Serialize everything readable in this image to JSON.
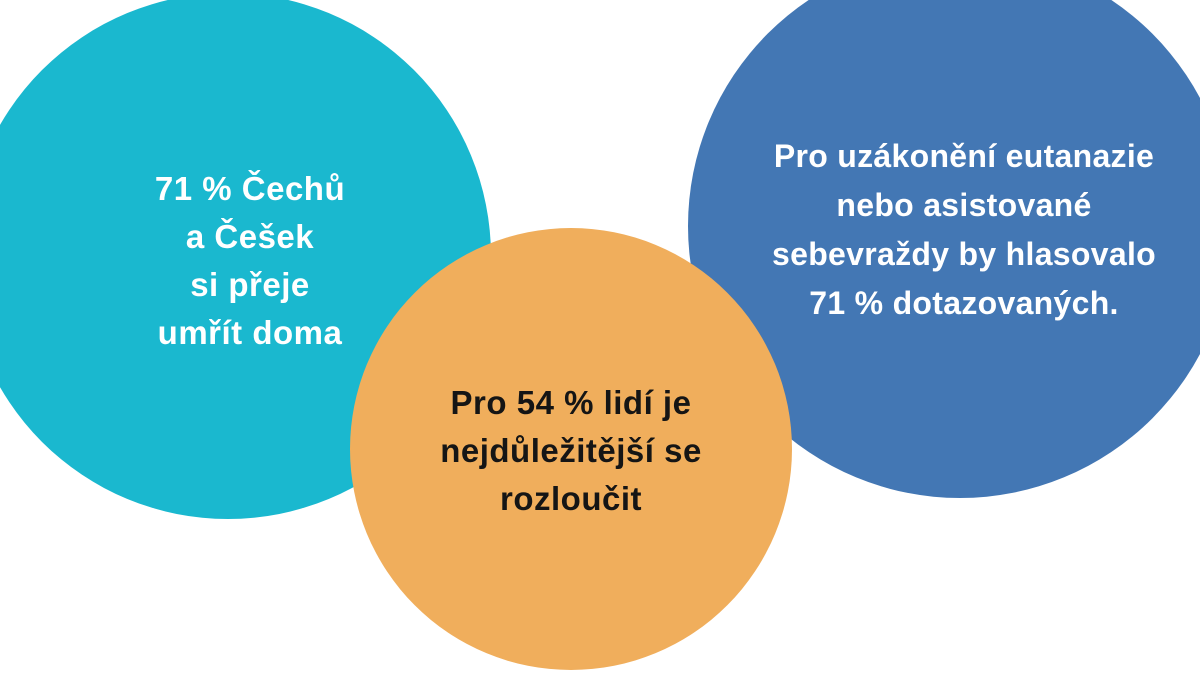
{
  "page": {
    "background_color": "#ffffff"
  },
  "circles": [
    {
      "id": "dying-at-home",
      "color": "#1ab8cf",
      "text_color": "#ffffff",
      "value_percent": 71,
      "lines": [
        "71 % Čechů",
        "a Češek",
        "si přeje",
        "umřít doma"
      ]
    },
    {
      "id": "farewell",
      "color": "#f0ae5c",
      "text_color": "#151515",
      "value_percent": 54,
      "lines": [
        "Pro 54 % lidí je",
        "nejdůležitější se",
        "rozloučit"
      ]
    },
    {
      "id": "euthanasia-vote",
      "color": "#4377b4",
      "text_color": "#ffffff",
      "value_percent": 71,
      "lines": [
        "Pro uzákonění eutanazie",
        "nebo asistované",
        "sebevraždy by hlasovalo",
        "71 % dotazovaných."
      ]
    }
  ]
}
